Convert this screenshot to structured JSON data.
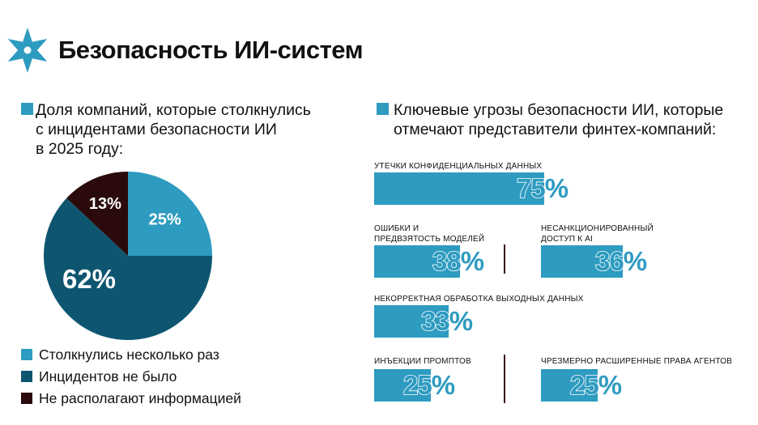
{
  "title": "Безопасность ИИ-систем",
  "colors": {
    "light_blue": "#2e9bc0",
    "dark_teal": "#0e5670",
    "dark_maroon": "#2a0a0a",
    "logo": "#2e9bc0"
  },
  "icons": {
    "logo": "snowflake-star-icon"
  },
  "left": {
    "heading_line1": "Доля компаний, которые столкнулись",
    "heading_line2": "с инцидентами безопасности ИИ",
    "heading_line3": "в 2025 году:"
  },
  "right": {
    "heading_line1": "Ключевые угрозы безопасности ИИ, которые",
    "heading_line2": "отмечают представители финтех-компаний:"
  },
  "chart_data": [
    {
      "type": "pie",
      "title": "Доля компаний, которые столкнулись с инцидентами безопасности ИИ в 2025 году:",
      "slices": [
        {
          "label": "Столкнулись несколько раз",
          "value": 25,
          "display": "25%",
          "color": "#2e9bc0"
        },
        {
          "label": "Инцидентов не было",
          "value": 62,
          "display": "62%",
          "color": "#0e5670"
        },
        {
          "label": "Не располагают информацией",
          "value": 13,
          "display": "13%",
          "color": "#2a0a0a"
        }
      ],
      "legend": "bottom-left"
    },
    {
      "type": "bar",
      "title": "Ключевые угрозы безопасности ИИ, которые отмечают представители финтех-компаний:",
      "unit": "%",
      "ylim": [
        0,
        100
      ],
      "items": [
        {
          "label_line1": "Утечки конфиденциальных данных",
          "label_line2": "",
          "value": 75,
          "display": "75%"
        },
        {
          "label_line1": "Ошибки и",
          "label_line2": "предвзятость моделей",
          "value": 38,
          "display": "38%"
        },
        {
          "label_line1": "Несанкционированный",
          "label_line2": "доступ к AI",
          "value": 36,
          "display": "36%"
        },
        {
          "label_line1": "Некорректная обработка выходных данных",
          "label_line2": "",
          "value": 33,
          "display": "33%"
        },
        {
          "label_line1": "Инъекции промптов",
          "label_line2": "",
          "value": 25,
          "display": "25%"
        },
        {
          "label_line1": "Чрезмерно расширенные права агентов",
          "label_line2": "",
          "value": 25,
          "display": "25%"
        }
      ]
    }
  ]
}
